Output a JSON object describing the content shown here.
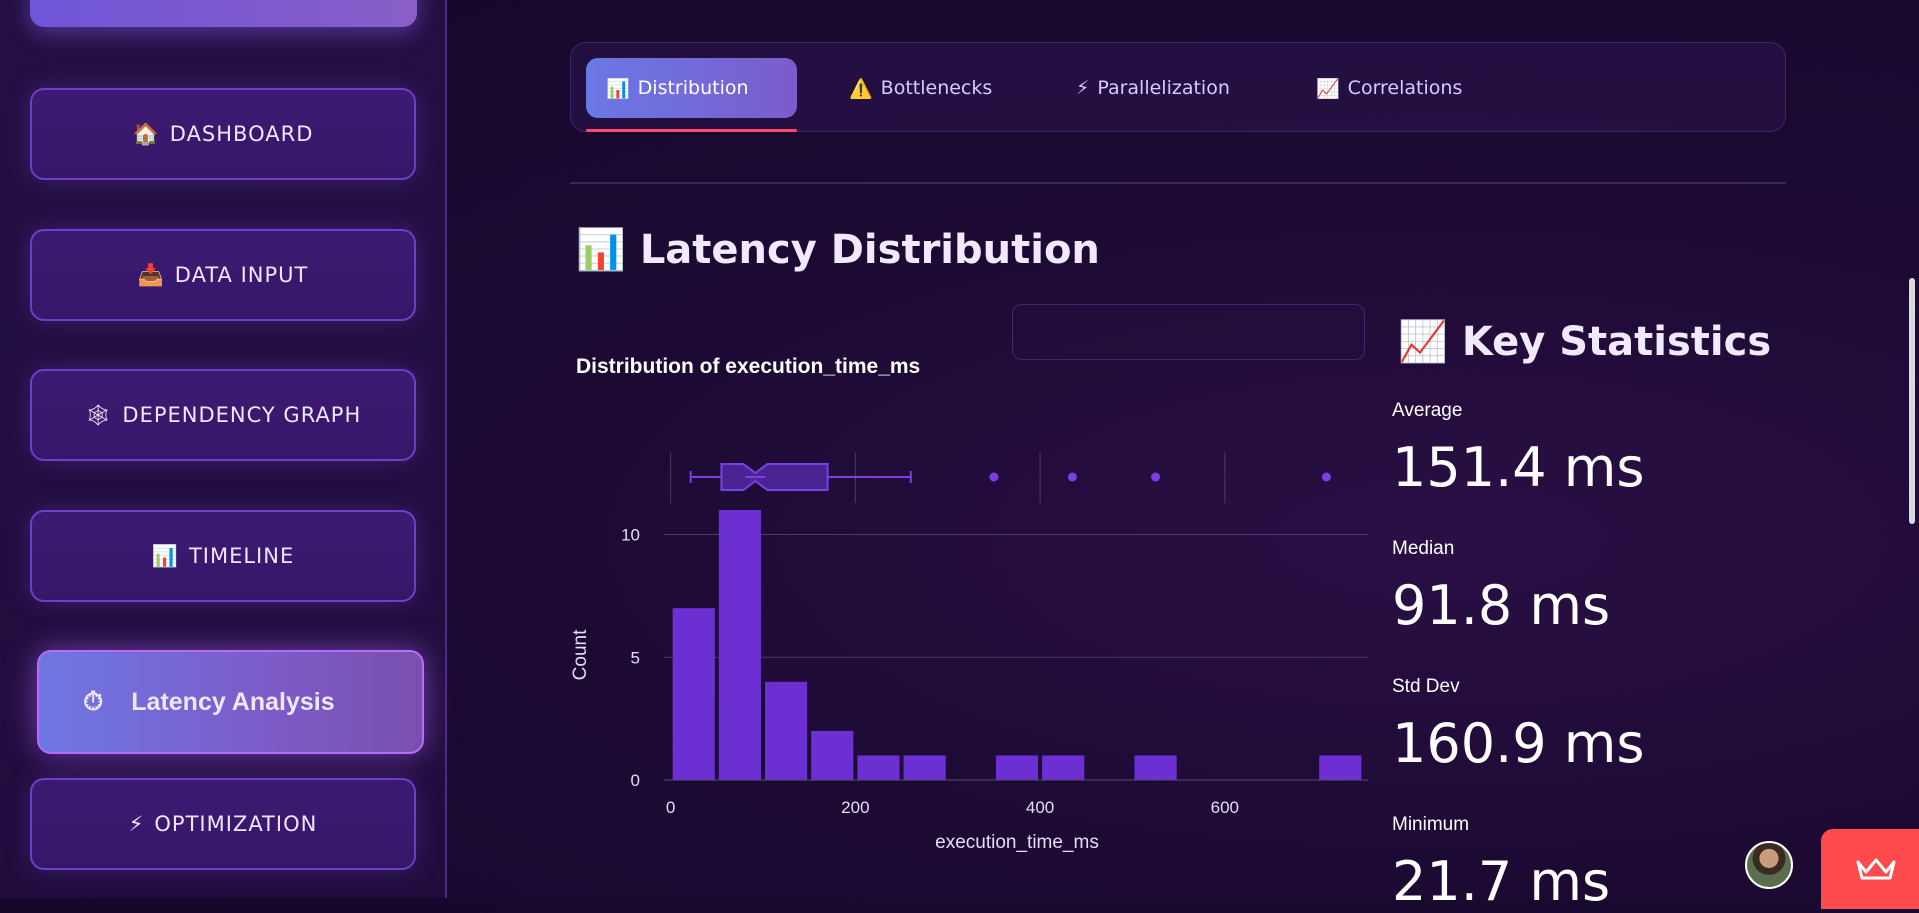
{
  "sidebar": {
    "items": [
      {
        "icon": "🏠",
        "label": "DASHBOARD"
      },
      {
        "icon": "📥",
        "label": "DATA INPUT"
      },
      {
        "icon": "🕸",
        "label": "DEPENDENCY GRAPH"
      },
      {
        "icon": "📊",
        "label": "TIMELINE"
      },
      {
        "icon": "⏱",
        "label": "Latency Analysis"
      },
      {
        "icon": "⚡",
        "label": "OPTIMIZATION"
      }
    ]
  },
  "tabs": [
    {
      "icon": "📊",
      "label": "Distribution"
    },
    {
      "icon": "⚠️",
      "label": "Bottlenecks"
    },
    {
      "icon": "⚡",
      "label": "Parallelization"
    },
    {
      "icon": "📈",
      "label": "Correlations"
    }
  ],
  "page": {
    "icon": "📊",
    "title": "Latency Distribution"
  },
  "chart": {
    "title": "Distribution of execution_time_ms"
  },
  "chart_data": {
    "type": "bar",
    "title": "Distribution of execution_time_ms",
    "xlabel": "execution_time_ms",
    "ylabel": "Count",
    "bin_width": 50,
    "bins": [
      {
        "x0": 0,
        "x1": 50,
        "count": 7
      },
      {
        "x0": 50,
        "x1": 100,
        "count": 11
      },
      {
        "x0": 100,
        "x1": 150,
        "count": 4
      },
      {
        "x0": 150,
        "x1": 200,
        "count": 2
      },
      {
        "x0": 200,
        "x1": 250,
        "count": 1
      },
      {
        "x0": 250,
        "x1": 300,
        "count": 1
      },
      {
        "x0": 350,
        "x1": 400,
        "count": 1
      },
      {
        "x0": 400,
        "x1": 450,
        "count": 1
      },
      {
        "x0": 500,
        "x1": 550,
        "count": 1
      },
      {
        "x0": 700,
        "x1": 750,
        "count": 1
      }
    ],
    "xlim": [
      -5,
      755
    ],
    "ylim": [
      0,
      11
    ],
    "xticks": [
      0,
      200,
      400,
      600
    ],
    "yticks": [
      0,
      5,
      10
    ],
    "boxplot": {
      "min": 21.7,
      "q1": 55,
      "median": 91.8,
      "q3": 170,
      "whisker_high": 260,
      "outliers": [
        350,
        435,
        525,
        710
      ]
    },
    "color": "#6c2fd2",
    "grid": true
  },
  "stats": {
    "icon": "📈",
    "title": "Key Statistics",
    "items": [
      {
        "label": "Average",
        "value": "151.4 ms"
      },
      {
        "label": "Median",
        "value": "91.8 ms"
      },
      {
        "label": "Std Dev",
        "value": "160.9 ms"
      },
      {
        "label": "Minimum",
        "value": "21.7 ms"
      }
    ]
  }
}
